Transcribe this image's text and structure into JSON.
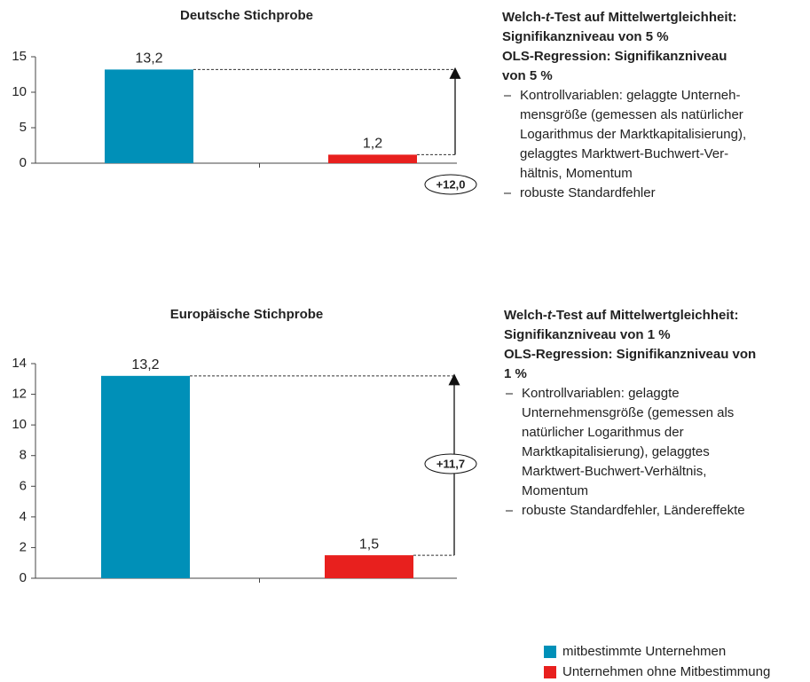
{
  "chart_data": [
    {
      "type": "bar",
      "title": "Deutsche Stichprobe",
      "categories": [
        null,
        null
      ],
      "values": [
        13.2,
        1.2
      ],
      "value_labels": [
        "13,2",
        "1,2"
      ],
      "colors": [
        "#0090b8",
        "#e8201e"
      ],
      "ylim": [
        0,
        15
      ],
      "yticks": [
        0,
        5,
        10,
        15
      ],
      "annotation": "+12,0",
      "notes": {
        "heading": [
          [
            "Welch-",
            "t",
            "-Test auf Mittelwertgleichheit:"
          ],
          "Signifikanzniveau von 5 %",
          "OLS-Regression: Signifikanzniveau",
          "von 5 %"
        ],
        "bullets": [
          [
            "Kontrollvariablen: gelaggte Unterneh-",
            "mensgröße (gemessen als natürlicher",
            "Logarithmus der Marktkapitalisierung),",
            "gelaggtes Marktwert-Buchwert-Ver-",
            "hältnis, Momentum"
          ],
          [
            "robuste Standardfehler"
          ]
        ]
      }
    },
    {
      "type": "bar",
      "title": "Europäische Stichprobe",
      "categories": [
        null,
        null
      ],
      "values": [
        13.2,
        1.5
      ],
      "value_labels": [
        "13,2",
        "1,5"
      ],
      "colors": [
        "#0090b8",
        "#e8201e"
      ],
      "ylim": [
        0,
        14
      ],
      "yticks": [
        0,
        2,
        4,
        6,
        8,
        10,
        12,
        14
      ],
      "annotation": "+11,7",
      "notes": {
        "heading": [
          [
            "Welch-",
            "t",
            "-Test auf Mittelwertgleichheit:"
          ],
          "Signifikanzniveau von 1 %",
          "OLS-Regression: Signifikanzniveau von",
          "1 %"
        ],
        "bullets": [
          [
            "Kontrollvariablen: gelaggte",
            "Unternehmensgröße (gemessen als",
            "natürlicher Logarithmus der",
            "Marktkapitalisierung), gelaggtes",
            "Marktwert-Buchwert-Verhältnis,",
            "Momentum"
          ],
          [
            "robuste Standardfehler, Ländereffekte"
          ]
        ]
      }
    }
  ],
  "legend": [
    {
      "name": "mitbestimmte Unternehmen",
      "color": "#0090b8"
    },
    {
      "name": "Unternehmen ohne Mitbestimmung",
      "color": "#e8201e"
    }
  ]
}
